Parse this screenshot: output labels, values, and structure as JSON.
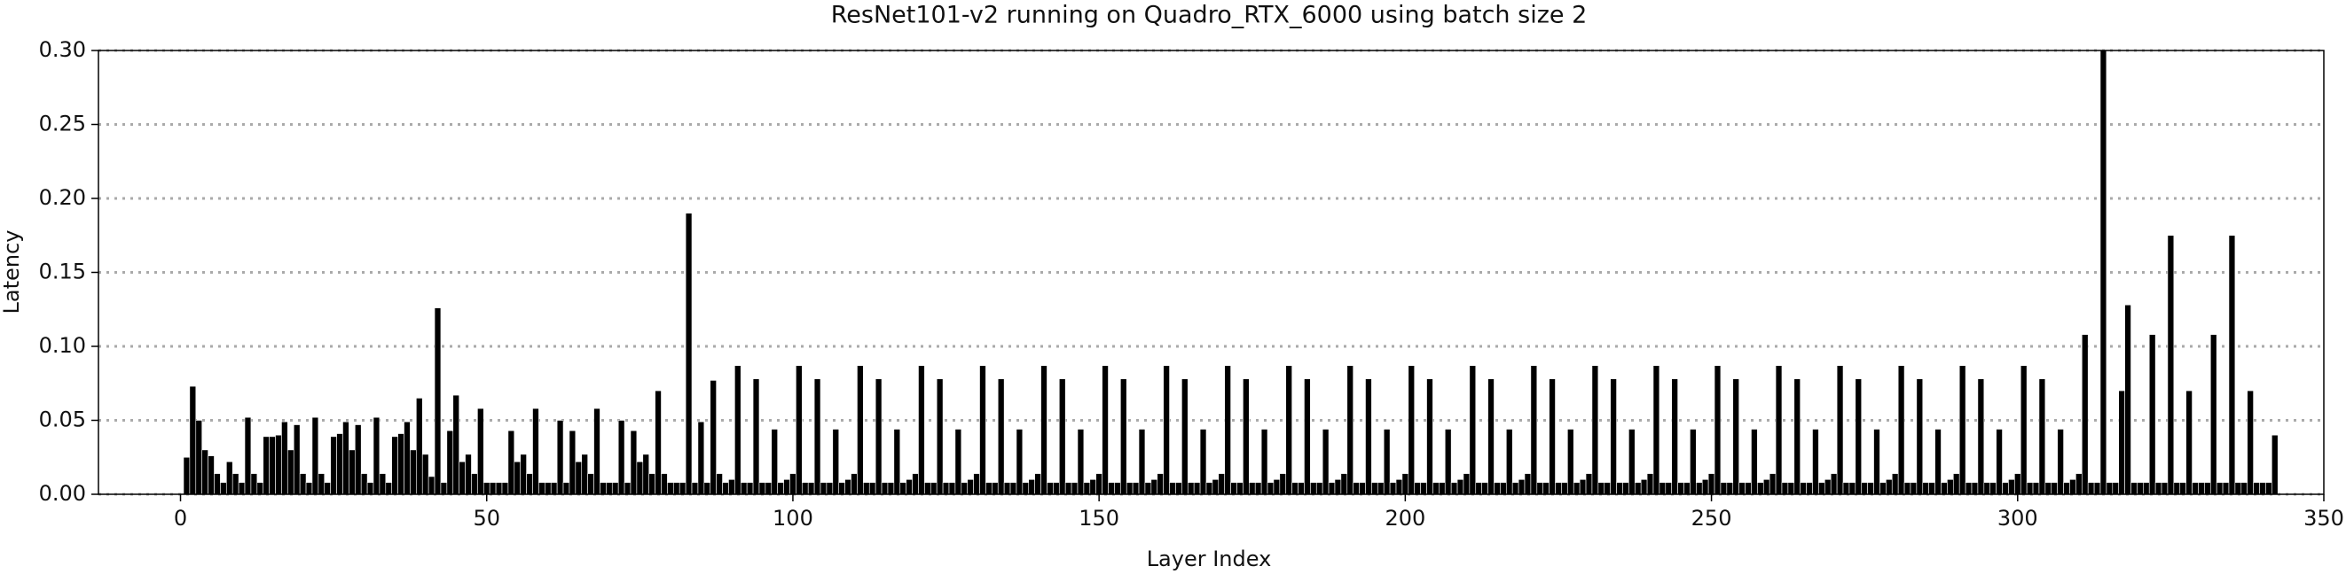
{
  "chart_data": {
    "type": "bar",
    "title": "ResNet101-v2 running on Quadro_RTX_6000 using batch size 2",
    "xlabel": "Layer Index",
    "ylabel": "Latency",
    "color": "#000000",
    "grid": true,
    "xlim": [
      -13.4,
      350
    ],
    "xticks": [
      0,
      50,
      100,
      150,
      200,
      250,
      300,
      350
    ],
    "ylim": [
      0,
      0.3
    ],
    "yticks": [
      {
        "value": 0,
        "label": "0.00"
      },
      {
        "value": 0.05,
        "label": "0.05"
      },
      {
        "value": 0.1,
        "label": "0.10"
      },
      {
        "value": 0.15,
        "label": "0.15"
      },
      {
        "value": 0.2,
        "label": "0.20"
      },
      {
        "value": 0.25,
        "label": "0.25"
      },
      {
        "value": 0.3,
        "label": "0.30"
      }
    ],
    "x": [
      1,
      2,
      3,
      4,
      5,
      6,
      7,
      8,
      9,
      10,
      11,
      12,
      13,
      14,
      15,
      16,
      17,
      18,
      19,
      20,
      21,
      22,
      23,
      24,
      25,
      26,
      27,
      28,
      29,
      30,
      31,
      32,
      33,
      34,
      35,
      36,
      37,
      38,
      39,
      40,
      41,
      42,
      43,
      44,
      45,
      46,
      47,
      48,
      49,
      50,
      51,
      52,
      53,
      54,
      55,
      56,
      57,
      58,
      59,
      60,
      61,
      62,
      63,
      64,
      65,
      66,
      67,
      68,
      69,
      70,
      71,
      72,
      73,
      74,
      75,
      76,
      77,
      78,
      79,
      80,
      81,
      82,
      83,
      84,
      85,
      86,
      87,
      88,
      89,
      90,
      91,
      92,
      93,
      94,
      95,
      96,
      97,
      98,
      99,
      100,
      101,
      102,
      103,
      104,
      105,
      106,
      107,
      108,
      109,
      110,
      111,
      112,
      113,
      114,
      115,
      116,
      117,
      118,
      119,
      120,
      121,
      122,
      123,
      124,
      125,
      126,
      127,
      128,
      129,
      130,
      131,
      132,
      133,
      134,
      135,
      136,
      137,
      138,
      139,
      140,
      141,
      142,
      143,
      144,
      145,
      146,
      147,
      148,
      149,
      150,
      151,
      152,
      153,
      154,
      155,
      156,
      157,
      158,
      159,
      160,
      161,
      162,
      163,
      164,
      165,
      166,
      167,
      168,
      169,
      170,
      171,
      172,
      173,
      174,
      175,
      176,
      177,
      178,
      179,
      180,
      181,
      182,
      183,
      184,
      185,
      186,
      187,
      188,
      189,
      190,
      191,
      192,
      193,
      194,
      195,
      196,
      197,
      198,
      199,
      200,
      201,
      202,
      203,
      204,
      205,
      206,
      207,
      208,
      209,
      210,
      211,
      212,
      213,
      214,
      215,
      216,
      217,
      218,
      219,
      220,
      221,
      222,
      223,
      224,
      225,
      226,
      227,
      228,
      229,
      230,
      231,
      232,
      233,
      234,
      235,
      236,
      237,
      238,
      239,
      240,
      241,
      242,
      243,
      244,
      245,
      246,
      247,
      248,
      249,
      250,
      251,
      252,
      253,
      254,
      255,
      256,
      257,
      258,
      259,
      260,
      261,
      262,
      263,
      264,
      265,
      266,
      267,
      268,
      269,
      270,
      271,
      272,
      273,
      274,
      275,
      276,
      277,
      278,
      279,
      280,
      281,
      282,
      283,
      284,
      285,
      286,
      287,
      288,
      289,
      290,
      291,
      292,
      293,
      294,
      295,
      296,
      297,
      298,
      299,
      300,
      301,
      302,
      303,
      304,
      305,
      306,
      307,
      308,
      309,
      310,
      311,
      312,
      313,
      314,
      315,
      316,
      317,
      318,
      319,
      320,
      321,
      322,
      323,
      324,
      325,
      326,
      327,
      328,
      329,
      330,
      331,
      332,
      333,
      334,
      335,
      336,
      337,
      338,
      339,
      340,
      341,
      342
    ],
    "values": [
      0.025,
      0.073,
      0.05,
      0.03,
      0.026,
      0.014,
      0.008,
      0.022,
      0.014,
      0.008,
      0.052,
      0.014,
      0.008,
      0.039,
      0.039,
      0.04,
      0.049,
      0.03,
      0.047,
      0.014,
      0.008,
      0.052,
      0.014,
      0.008,
      0.039,
      0.041,
      0.049,
      0.03,
      0.047,
      0.014,
      0.008,
      0.052,
      0.014,
      0.008,
      0.039,
      0.041,
      0.049,
      0.03,
      0.065,
      0.027,
      0.012,
      0.126,
      0.008,
      0.043,
      0.067,
      0.022,
      0.027,
      0.014,
      0.058,
      0.008,
      0.008,
      0.008,
      0.008,
      0.043,
      0.022,
      0.027,
      0.014,
      0.058,
      0.008,
      0.008,
      0.008,
      0.05,
      0.008,
      0.043,
      0.022,
      0.027,
      0.014,
      0.058,
      0.008,
      0.008,
      0.008,
      0.05,
      0.008,
      0.043,
      0.022,
      0.027,
      0.014,
      0.07,
      0.014,
      0.008,
      0.008,
      0.008,
      0.19,
      0.008,
      0.049,
      0.008,
      0.077,
      0.014,
      0.008,
      0.01,
      0.087,
      0.008,
      0.008,
      0.078,
      0.008,
      0.008,
      0.044,
      0.008,
      0.01,
      0.014,
      0.087,
      0.008,
      0.008,
      0.078,
      0.008,
      0.008,
      0.044,
      0.008,
      0.01,
      0.014,
      0.087,
      0.008,
      0.008,
      0.078,
      0.008,
      0.008,
      0.044,
      0.008,
      0.01,
      0.014,
      0.087,
      0.008,
      0.008,
      0.078,
      0.008,
      0.008,
      0.044,
      0.008,
      0.01,
      0.014,
      0.087,
      0.008,
      0.008,
      0.078,
      0.008,
      0.008,
      0.044,
      0.008,
      0.01,
      0.014,
      0.087,
      0.008,
      0.008,
      0.078,
      0.008,
      0.008,
      0.044,
      0.008,
      0.01,
      0.014,
      0.087,
      0.008,
      0.008,
      0.078,
      0.008,
      0.008,
      0.044,
      0.008,
      0.01,
      0.014,
      0.087,
      0.008,
      0.008,
      0.078,
      0.008,
      0.008,
      0.044,
      0.008,
      0.01,
      0.014,
      0.087,
      0.008,
      0.008,
      0.078,
      0.008,
      0.008,
      0.044,
      0.008,
      0.01,
      0.014,
      0.087,
      0.008,
      0.008,
      0.078,
      0.008,
      0.008,
      0.044,
      0.008,
      0.01,
      0.014,
      0.087,
      0.008,
      0.008,
      0.078,
      0.008,
      0.008,
      0.044,
      0.008,
      0.01,
      0.014,
      0.087,
      0.008,
      0.008,
      0.078,
      0.008,
      0.008,
      0.044,
      0.008,
      0.01,
      0.014,
      0.087,
      0.008,
      0.008,
      0.078,
      0.008,
      0.008,
      0.044,
      0.008,
      0.01,
      0.014,
      0.087,
      0.008,
      0.008,
      0.078,
      0.008,
      0.008,
      0.044,
      0.008,
      0.01,
      0.014,
      0.087,
      0.008,
      0.008,
      0.078,
      0.008,
      0.008,
      0.044,
      0.008,
      0.01,
      0.014,
      0.087,
      0.008,
      0.008,
      0.078,
      0.008,
      0.008,
      0.044,
      0.008,
      0.01,
      0.014,
      0.087,
      0.008,
      0.008,
      0.078,
      0.008,
      0.008,
      0.044,
      0.008,
      0.01,
      0.014,
      0.087,
      0.008,
      0.008,
      0.078,
      0.008,
      0.008,
      0.044,
      0.008,
      0.01,
      0.014,
      0.087,
      0.008,
      0.008,
      0.078,
      0.008,
      0.008,
      0.044,
      0.008,
      0.01,
      0.014,
      0.087,
      0.008,
      0.008,
      0.078,
      0.008,
      0.008,
      0.044,
      0.008,
      0.01,
      0.014,
      0.087,
      0.008,
      0.008,
      0.078,
      0.008,
      0.008,
      0.044,
      0.008,
      0.01,
      0.014,
      0.087,
      0.008,
      0.008,
      0.078,
      0.008,
      0.008,
      0.044,
      0.008,
      0.01,
      0.014,
      0.108,
      0.008,
      0.008,
      0.3,
      0.008,
      0.008,
      0.07,
      0.128,
      0.008,
      0.008,
      0.008,
      0.108,
      0.008,
      0.008,
      0.175,
      0.008,
      0.008,
      0.07,
      0.008,
      0.008,
      0.008,
      0.108,
      0.008,
      0.008,
      0.175,
      0.008,
      0.008,
      0.07,
      0.008,
      0.008,
      0.008,
      0.04
    ]
  }
}
